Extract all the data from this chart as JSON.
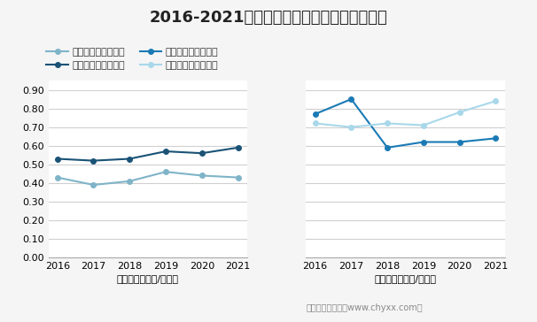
{
  "title": "2016-2021年未焙制及已焙制麦芽进出口均价",
  "years": [
    2016,
    2017,
    2018,
    2019,
    2020,
    2021
  ],
  "export_unroasted": [
    0.43,
    0.39,
    0.41,
    0.46,
    0.44,
    0.43
  ],
  "export_roasted": [
    0.53,
    0.52,
    0.53,
    0.57,
    0.56,
    0.59
  ],
  "import_unroasted": [
    0.77,
    0.85,
    0.59,
    0.62,
    0.62,
    0.64
  ],
  "import_roasted": [
    0.72,
    0.7,
    0.72,
    0.71,
    0.78,
    0.84
  ],
  "color_export_unroasted": "#7fb4c8",
  "color_export_roasted": "#1a5276",
  "color_import_unroasted": "#1a7ab5",
  "color_import_roasted": "#a8d8ea",
  "ylim": [
    0.0,
    0.95
  ],
  "yticks": [
    0.0,
    0.1,
    0.2,
    0.3,
    0.4,
    0.5,
    0.6,
    0.7,
    0.8,
    0.9
  ],
  "xlabel_left": "出口均价（美元/千克）",
  "xlabel_right": "进口均价（美元/千克）",
  "legend_labels": [
    "未焙制麦芽出口均价",
    "已焙制麦芽出口均价",
    "未焙制麦芽进口均价",
    "已焙制麦芽进口均价"
  ],
  "footer": "制图：智研咨询（www.chyxx.com）",
  "bg_color": "#f5f5f5",
  "plot_bg_color": "#ffffff",
  "grid_color": "#d0d0d0",
  "title_fontsize": 13,
  "axis_fontsize": 8,
  "legend_fontsize": 8
}
